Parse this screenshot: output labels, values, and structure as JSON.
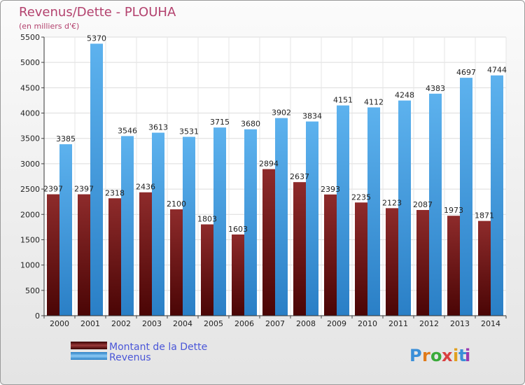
{
  "chart_data": {
    "type": "bar",
    "title": "Revenus/Dette - PLOUHA",
    "subtitle": "(en milliers d'€)",
    "categories": [
      "2000",
      "2001",
      "2002",
      "2003",
      "2004",
      "2005",
      "2006",
      "2007",
      "2008",
      "2009",
      "2010",
      "2011",
      "2012",
      "2013",
      "2014"
    ],
    "series": [
      {
        "name": "Montant de la Dette",
        "color": "#7a1e1e",
        "values": [
          2397,
          2397,
          2318,
          2436,
          2100,
          1803,
          1603,
          2894,
          2637,
          2393,
          2235,
          2123,
          2087,
          1973,
          1871
        ],
        "labels": [
          "2397",
          "2397",
          "2318",
          "2436",
          "2100",
          "1803",
          "1603",
          "2894",
          "2637",
          "2393",
          "2235",
          "2123",
          "2087",
          "1973",
          "1871"
        ]
      },
      {
        "name": "Revenus",
        "color": "#3a9ee4",
        "values": [
          3385,
          5370,
          3546,
          3613,
          3531,
          3715,
          3680,
          3902,
          3834,
          4151,
          4112,
          4248,
          4383,
          4697,
          4744
        ],
        "labels": [
          "3385",
          "5370",
          "3546",
          "3613",
          "3531",
          "3715",
          "3680",
          "3902",
          "3834",
          "4151",
          "4112",
          "4248",
          "4383",
          "4697",
          "4744"
        ]
      }
    ],
    "yticks": [
      "0",
      "500",
      "1000",
      "1500",
      "2000",
      "2500",
      "3000",
      "3500",
      "4000",
      "4500",
      "5000",
      "5500"
    ],
    "ylim": [
      0,
      5500
    ],
    "grid": true,
    "legend_position": "bottom-left"
  },
  "logo": {
    "text": "Proxiti",
    "letter_colors": [
      "#3a8fd8",
      "#e07a1a",
      "#3aaa3a",
      "#d94040",
      "#e0a020",
      "#3a8fd8",
      "#9a3ab0"
    ]
  }
}
